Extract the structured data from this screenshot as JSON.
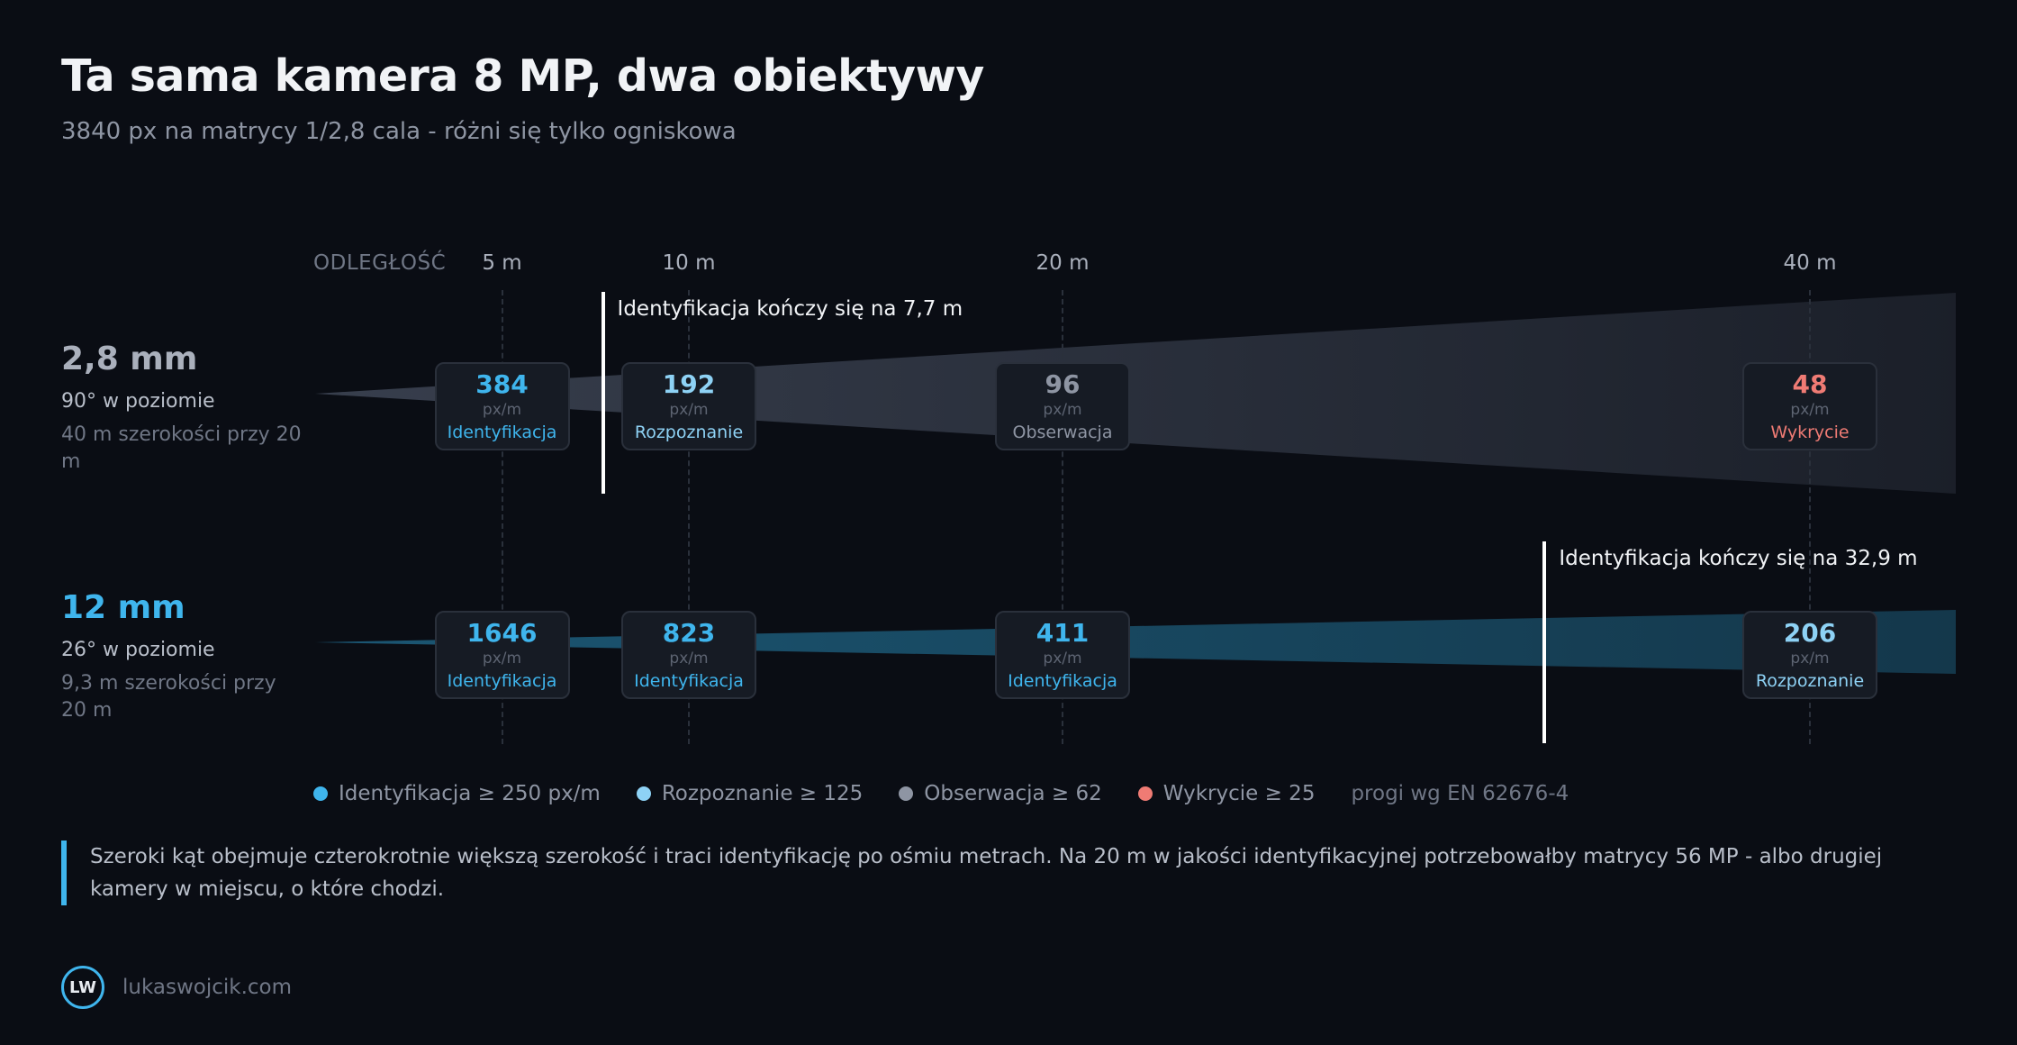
{
  "title": "Ta sama kamera 8 MP, dwa obiektywy",
  "subtitle": "3840 px na matrycy 1/2,8 cala - różni się tylko ogniskowa",
  "axis": {
    "heading": "ODLEGŁOŚĆ",
    "ticks": [
      {
        "value": 5,
        "label": "5 m"
      },
      {
        "value": 10,
        "label": "10 m"
      },
      {
        "value": 20,
        "label": "20 m"
      },
      {
        "value": 40,
        "label": "40 m"
      }
    ]
  },
  "lenses": [
    {
      "focal": "2,8 mm",
      "focal_color": "#aab0bc",
      "angle": "90° w poziomie",
      "width": "40 m szerokości przy 20 m",
      "cone_color": "#3a4150",
      "cards": [
        {
          "distance": 5,
          "value": "384",
          "unit": "px/m",
          "level": "Identyfikacja",
          "color": "#3fb5ed"
        },
        {
          "distance": 10,
          "value": "192",
          "unit": "px/m",
          "level": "Rozpoznanie",
          "color": "#8ed2f5"
        },
        {
          "distance": 20,
          "value": "96",
          "unit": "px/m",
          "level": "Obserwacja",
          "color": "#8e95a3"
        },
        {
          "distance": 40,
          "value": "48",
          "unit": "px/m",
          "level": "Wykrycie",
          "color": "#ef7b74"
        }
      ],
      "marker": {
        "distance": 7.7,
        "label": "Identyfikacja kończy się na 7,7 m"
      }
    },
    {
      "focal": "12 mm",
      "focal_color": "#3fb5ed",
      "angle": "26° w poziomie",
      "width": "9,3 m szerokości przy 20 m",
      "cone_color": "#1c5a78",
      "cards": [
        {
          "distance": 5,
          "value": "1646",
          "unit": "px/m",
          "level": "Identyfikacja",
          "color": "#3fb5ed"
        },
        {
          "distance": 10,
          "value": "823",
          "unit": "px/m",
          "level": "Identyfikacja",
          "color": "#3fb5ed"
        },
        {
          "distance": 20,
          "value": "411",
          "unit": "px/m",
          "level": "Identyfikacja",
          "color": "#3fb5ed"
        },
        {
          "distance": 40,
          "value": "206",
          "unit": "px/m",
          "level": "Rozpoznanie",
          "color": "#8ed2f5"
        }
      ],
      "marker": {
        "distance": 32.9,
        "label": "Identyfikacja kończy się na 32,9 m"
      }
    }
  ],
  "legend": [
    {
      "label": "Identyfikacja ≥ 250 px/m",
      "color": "#3fb5ed"
    },
    {
      "label": "Rozpoznanie ≥ 125",
      "color": "#8ed2f5"
    },
    {
      "label": "Obserwacja ≥ 62",
      "color": "#8e95a3"
    },
    {
      "label": "Wykrycie ≥ 25",
      "color": "#ef7b74"
    }
  ],
  "legend_note": "progi wg EN 62676-4",
  "quote": "Szeroki kąt obejmuje czterokrotnie większą szerokość i traci identyfikację po ośmiu metrach. Na 20 m w jakości identyfikacyjnej potrzebowałby matrycy 56 MP - albo drugiej kamery w miejscu, o które chodzi.",
  "footer": {
    "logo": "LW",
    "site": "lukaswojcik.com"
  }
}
